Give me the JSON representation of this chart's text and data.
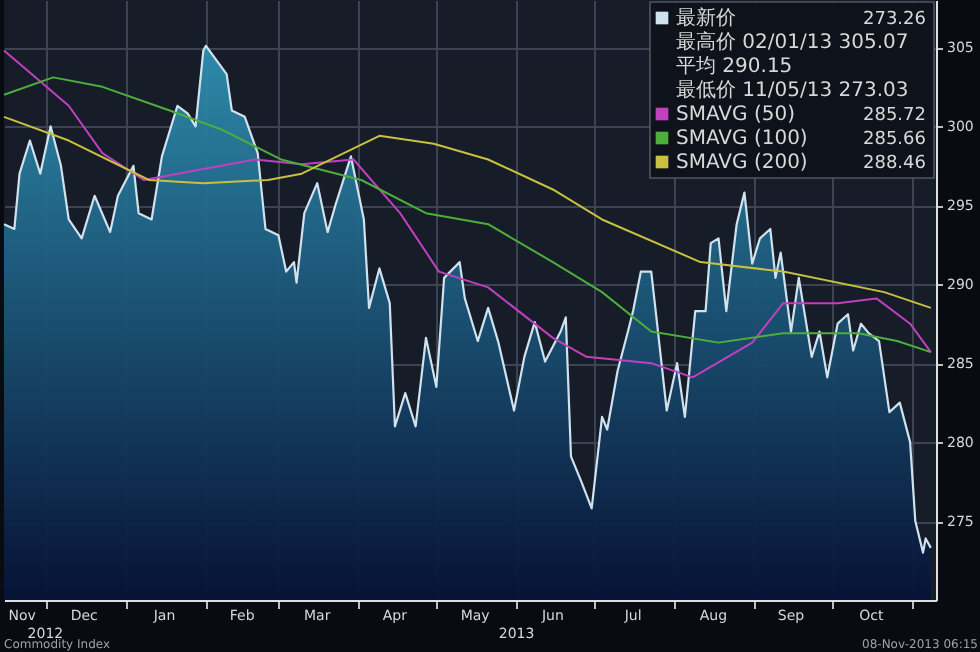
{
  "chart_data": {
    "type": "line",
    "legend": "top right",
    "grid": true,
    "marker": "none",
    "line_style": "solid",
    "xlim": [
      "2012-11-15",
      "2013-11-10"
    ],
    "ylim": [
      270,
      308
    ],
    "yticks": [
      275,
      280,
      285,
      290,
      295,
      300,
      305
    ],
    "xticks": [
      {
        "value": "2012-12-01",
        "label": null
      },
      {
        "value": "2013-01-01",
        "label": null
      },
      {
        "value": "2013-02-01",
        "label": null
      },
      {
        "value": "2013-03-01",
        "label": null
      },
      {
        "value": "2013-04-01",
        "label": null
      },
      {
        "value": "2013-05-01",
        "label": null
      },
      {
        "value": "2013-06-01",
        "label": null
      },
      {
        "value": "2013-07-01",
        "label": null
      },
      {
        "value": "2013-08-01",
        "label": null
      },
      {
        "value": "2013-09-01",
        "label": null
      },
      {
        "value": "2013-10-01",
        "label": null
      },
      {
        "value": "2013-11-01",
        "label": null
      },
      {
        "value": "2012-11-22",
        "label": "Nov"
      },
      {
        "value": "2012-12-16",
        "label": "Dec"
      },
      {
        "value": "2013-01-16",
        "label": "Jan"
      },
      {
        "value": "2013-02-15",
        "label": "Feb"
      },
      {
        "value": "2013-03-16",
        "label": "Mar"
      },
      {
        "value": "2013-04-15",
        "label": "Apr"
      },
      {
        "value": "2013-05-16",
        "label": "May"
      },
      {
        "value": "2013-06-15",
        "label": "Jun"
      },
      {
        "value": "2013-07-16",
        "label": "Jul"
      },
      {
        "value": "2013-08-16",
        "label": "Aug"
      },
      {
        "value": "2013-09-15",
        "label": "Sep"
      },
      {
        "value": "2013-10-16",
        "label": "Oct"
      }
    ],
    "series": [
      {
        "name": "最新价",
        "type": "area",
        "color": "#d0e2ee",
        "x": [
          "2012-11-15",
          "2012-11-19",
          "2012-11-21",
          "2012-11-25",
          "2012-11-29",
          "2012-12-03",
          "2012-12-07",
          "2012-12-10",
          "2012-12-15",
          "2012-12-20",
          "2012-12-26",
          "2012-12-29",
          "2013-01-04",
          "2013-01-06",
          "2013-01-11",
          "2013-01-15",
          "2013-01-21",
          "2013-01-25",
          "2013-01-28",
          "2013-01-31",
          "2013-02-01",
          "2013-02-09",
          "2013-02-11",
          "2013-02-16",
          "2013-02-21",
          "2013-02-24",
          "2013-03-01",
          "2013-03-04",
          "2013-03-07",
          "2013-03-08",
          "2013-03-11",
          "2013-03-16",
          "2013-03-20",
          "2013-03-23",
          "2013-03-29",
          "2013-04-03",
          "2013-04-05",
          "2013-04-09",
          "2013-04-13",
          "2013-04-15",
          "2013-04-19",
          "2013-04-23",
          "2013-04-27",
          "2013-05-01",
          "2013-05-04",
          "2013-05-10",
          "2013-05-12",
          "2013-05-17",
          "2013-05-21",
          "2013-05-25",
          "2013-05-31",
          "2013-06-04",
          "2013-06-08",
          "2013-06-12",
          "2013-06-18",
          "2013-06-20",
          "2013-06-22",
          "2013-06-26",
          "2013-06-30",
          "2013-07-04",
          "2013-07-06",
          "2013-07-10",
          "2013-07-14",
          "2013-07-16",
          "2013-07-19",
          "2013-07-23",
          "2013-07-25",
          "2013-07-29",
          "2013-08-02",
          "2013-08-05",
          "2013-08-09",
          "2013-08-13",
          "2013-08-15",
          "2013-08-18",
          "2013-08-21",
          "2013-08-25",
          "2013-08-28",
          "2013-08-31",
          "2013-09-03",
          "2013-09-07",
          "2013-09-09",
          "2013-09-11",
          "2013-09-15",
          "2013-09-18",
          "2013-09-23",
          "2013-09-26",
          "2013-09-29",
          "2013-10-03",
          "2013-10-07",
          "2013-10-09",
          "2013-10-12",
          "2013-10-15",
          "2013-10-19",
          "2013-10-23",
          "2013-10-27",
          "2013-10-31",
          "2013-11-02",
          "2013-11-05",
          "2013-11-06",
          "2013-11-08"
        ],
        "values": [
          293.8,
          293.5,
          297,
          299.1,
          297,
          300,
          297.5,
          294.1,
          292.9,
          295.6,
          293.3,
          295.6,
          297.5,
          294.5,
          294.1,
          298.1,
          301.3,
          300.8,
          300,
          304.8,
          305.1,
          303.3,
          301,
          300.6,
          298.3,
          293.5,
          293.1,
          290.8,
          291.4,
          290.1,
          294.5,
          296.4,
          293.3,
          295,
          298.1,
          294.1,
          288.5,
          291,
          288.8,
          281,
          283.1,
          281,
          286.6,
          283.5,
          290.4,
          291.4,
          289.1,
          286.4,
          288.5,
          286.3,
          282,
          285.4,
          287.6,
          285.1,
          287,
          287.9,
          279.1,
          277.5,
          275.8,
          281.6,
          280.8,
          284.5,
          287,
          288.3,
          290.8,
          290.8,
          287.9,
          282,
          285,
          281.6,
          288.3,
          288.3,
          292.6,
          292.9,
          288.3,
          293.8,
          295.8,
          291.3,
          292.9,
          293.5,
          290.4,
          292,
          287,
          290.4,
          285.4,
          287,
          284.1,
          287.5,
          288.1,
          285.8,
          287.5,
          286.9,
          286.4,
          281.9,
          282.5,
          280,
          275,
          273,
          273.9,
          273.3
        ]
      },
      {
        "name": "SMAVG (50)",
        "color": "#c040c0",
        "x": [
          "2012-11-15",
          "2012-12-10",
          "2012-12-23",
          "2013-01-08",
          "2013-02-20",
          "2013-03-10",
          "2013-03-30",
          "2013-04-17",
          "2013-05-02",
          "2013-05-21",
          "2013-06-15",
          "2013-06-28",
          "2013-07-23",
          "2013-08-08",
          "2013-08-31",
          "2013-09-12",
          "2013-10-03",
          "2013-10-18",
          "2013-10-31",
          "2013-11-08"
        ],
        "values": [
          304.8,
          301.3,
          298.3,
          296.6,
          297.9,
          297.6,
          297.9,
          294.5,
          290.8,
          289.8,
          286.6,
          285.4,
          285,
          284.1,
          286.3,
          288.8,
          288.8,
          289.1,
          287.5,
          285.7
        ]
      },
      {
        "name": "SMAVG (100)",
        "color": "#4caf3c",
        "x": [
          "2012-11-15",
          "2012-12-04",
          "2012-12-23",
          "2013-01-18",
          "2013-02-07",
          "2013-03-02",
          "2013-04-02",
          "2013-04-27",
          "2013-05-21",
          "2013-06-15",
          "2013-07-04",
          "2013-07-23",
          "2013-08-18",
          "2013-09-12",
          "2013-10-11",
          "2013-10-26",
          "2013-11-08"
        ],
        "values": [
          302,
          303.1,
          302.5,
          301,
          299.8,
          297.9,
          296.6,
          294.5,
          293.8,
          291.4,
          289.5,
          287,
          286.3,
          286.9,
          286.9,
          286.4,
          285.7
        ]
      },
      {
        "name": "SMAVG (200)",
        "color": "#c8c040",
        "x": [
          "2012-11-15",
          "2012-12-10",
          "2013-01-10",
          "2013-01-31",
          "2013-02-25",
          "2013-03-10",
          "2013-04-09",
          "2013-04-30",
          "2013-05-21",
          "2013-06-15",
          "2013-07-04",
          "2013-08-11",
          "2013-09-12",
          "2013-10-21",
          "2013-11-08"
        ],
        "values": [
          300.6,
          299.1,
          296.6,
          296.4,
          296.6,
          297,
          299.4,
          298.9,
          297.9,
          296,
          294.1,
          291.4,
          290.8,
          289.5,
          288.5
        ]
      }
    ],
    "annotations": [
      "273.26",
      "最高价 02/01/13 305.07",
      "平均 290.15",
      "最低价 11/05/13 273.03",
      "285.72",
      "285.66",
      "288.46",
      "Commodity Index",
      "08-Nov-2013 06:15",
      "2012",
      "2013"
    ]
  }
}
